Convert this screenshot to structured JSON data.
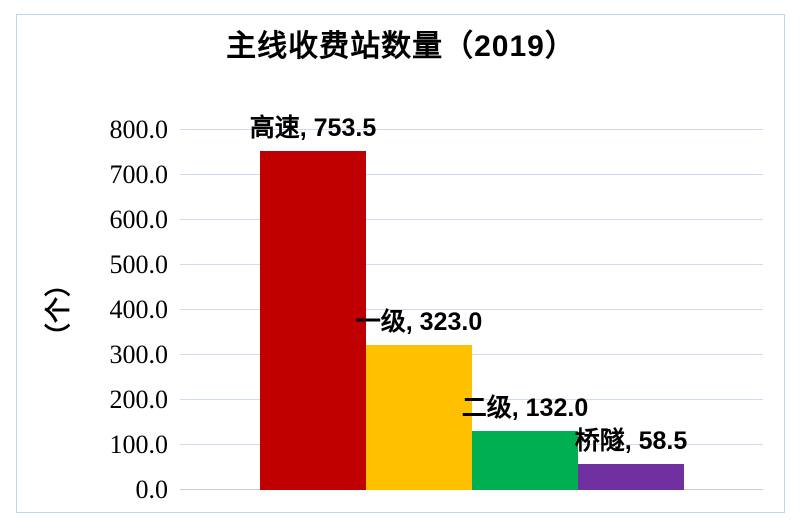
{
  "chart": {
    "title": "主线收费站数量（2019）",
    "y_axis_title": "（个）"
  },
  "chart_data": {
    "type": "bar",
    "title": "主线收费站数量（2019）",
    "xlabel": "",
    "ylabel": "（个）",
    "categories": [
      "高速",
      "一级",
      "二级",
      "桥隧"
    ],
    "values": [
      753.5,
      323.0,
      132.0,
      58.5
    ],
    "series": [
      {
        "name": "高速",
        "value": 753.5,
        "color": "#C00000",
        "data_label": "高速, 753.5"
      },
      {
        "name": "一级",
        "value": 323.0,
        "color": "#FFC000",
        "data_label": "一级, 323.0"
      },
      {
        "name": "二级",
        "value": 132.0,
        "color": "#00B050",
        "data_label": "二级, 132.0"
      },
      {
        "name": "桥隧",
        "value": 58.5,
        "color": "#7030A0",
        "data_label": "桥隧, 58.5"
      }
    ],
    "ylim": [
      0,
      800
    ],
    "yticks": [
      0,
      100,
      200,
      300,
      400,
      500,
      600,
      700,
      800
    ],
    "ytick_labels": [
      "0.0",
      "100.0",
      "200.0",
      "300.0",
      "400.0",
      "500.0",
      "600.0",
      "700.0",
      "800.0"
    ],
    "tick_decimal_places": 1,
    "grid": true,
    "legend": "none",
    "data_labels_position": "outside-end",
    "colors": {
      "gridline": "#CFDCEE",
      "chart_border": "#BDD7EE",
      "title_text": "#000000",
      "label_text": "#000000",
      "tick_text": "#000000"
    }
  }
}
